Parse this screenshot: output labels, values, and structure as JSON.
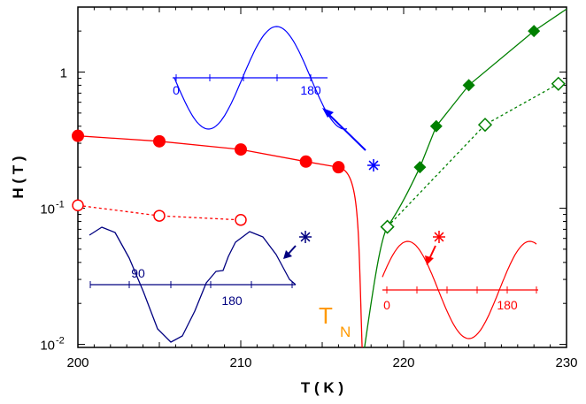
{
  "chart_data": {
    "type": "scatter",
    "title": "",
    "xlabel": "T ( K )",
    "ylabel": "H ( T )",
    "xlim": [
      200,
      230
    ],
    "ylim": [
      0.0095,
      3.0
    ],
    "yscale": "log",
    "x_ticks": [
      "200",
      "210",
      "220",
      "230"
    ],
    "y_ticks": [
      {
        "value": 0.01,
        "base": "10",
        "exp": "-2"
      },
      {
        "value": 0.1,
        "base": "10",
        "exp": "-1"
      },
      {
        "value": 1,
        "base": "1",
        "exp": ""
      }
    ],
    "series": [
      {
        "color": "#ff0000",
        "marker": "filled-circle",
        "line": "solid",
        "x": [
          200,
          205,
          210,
          214,
          216
        ],
        "y": [
          0.34,
          0.31,
          0.27,
          0.22,
          0.2
        ]
      },
      {
        "color": "#ff0000",
        "marker": "open-circle",
        "line": "dotted",
        "x": [
          200,
          205,
          210
        ],
        "y": [
          0.105,
          0.088,
          0.082
        ]
      },
      {
        "color": "#008000",
        "marker": "filled-diamond",
        "line": "solid",
        "x": [
          221,
          222,
          224,
          228
        ],
        "y": [
          0.2,
          0.4,
          0.8,
          2.0
        ]
      },
      {
        "color": "#008000",
        "marker": "open-diamond",
        "line": "dotted",
        "x": [
          219,
          225,
          229.5
        ],
        "y": [
          0.073,
          0.41,
          0.82
        ]
      }
    ],
    "annotations": {
      "tn_label": "T",
      "tn_sub": "N",
      "inset_top_blue": {
        "color": "#0000ff",
        "marks": [
          "0",
          "180"
        ]
      },
      "inset_left_navy": {
        "color": "#000080",
        "marks": [
          "90",
          "180"
        ]
      },
      "inset_right_red": {
        "color": "#ff0000",
        "marks": [
          "0",
          "180"
        ]
      }
    }
  }
}
